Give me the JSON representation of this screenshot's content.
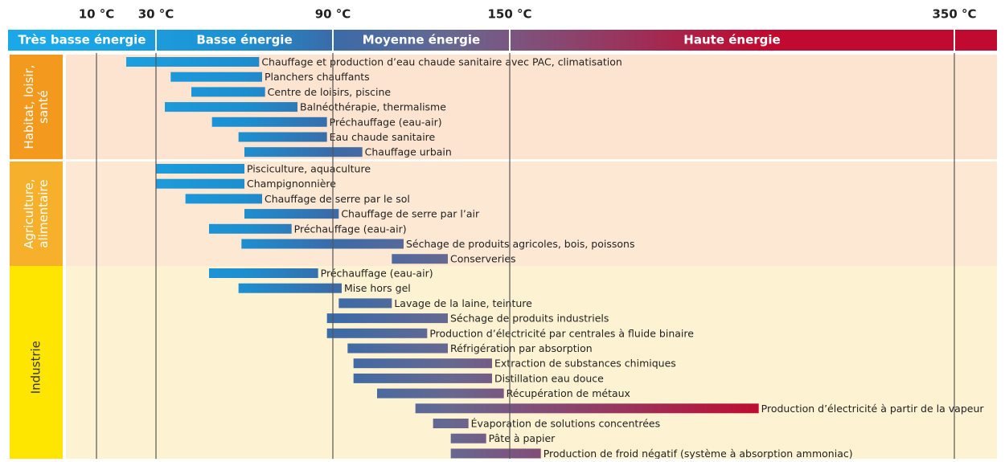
{
  "chart_data": {
    "type": "range-bar",
    "xlim": [
      0,
      370
    ],
    "xticks": [
      {
        "value": 10,
        "label": "10 °C"
      },
      {
        "value": 30,
        "label": "30 °C"
      },
      {
        "value": 90,
        "label": "90 °C"
      },
      {
        "value": 150,
        "label": "150 °C"
      },
      {
        "value": 350,
        "label": "350 °C"
      }
    ],
    "grid": true,
    "bands": [
      "Très basse énergie",
      "Basse énergie",
      "Moyenne énergie",
      "Haute énergie"
    ],
    "series": [
      {
        "name": "Habitat, loisir, santé",
        "color": "#f39a1e",
        "background": "#fce4d0",
        "tasks": [
          {
            "name": "Chauffage et production d’eau chaude sanitaire avec PAC, climatisation",
            "start": 20,
            "end": 65
          },
          {
            "name": "Planchers chauffants",
            "start": 35,
            "end": 66
          },
          {
            "name": "Centre de loisirs, piscine",
            "start": 42,
            "end": 67
          },
          {
            "name": "Balnéothérapie, thermalisme",
            "start": 33,
            "end": 78
          },
          {
            "name": "Préchauffage (eau-air)",
            "start": 49,
            "end": 88
          },
          {
            "name": "Eau chaude sanitaire",
            "start": 58,
            "end": 88
          },
          {
            "name": "Chauffage urbain",
            "start": 60,
            "end": 100
          }
        ]
      },
      {
        "name": "Agriculture, alimentaire",
        "color": "#f6b02c",
        "background": "#fce8d3",
        "tasks": [
          {
            "name": "Pisciculture, aquaculture",
            "start": 30,
            "end": 60
          },
          {
            "name": "Champignonnière",
            "start": 30,
            "end": 60
          },
          {
            "name": "Chauffage de serre par le sol",
            "start": 40,
            "end": 66
          },
          {
            "name": "Chauffage de serre par l’air",
            "start": 60,
            "end": 92
          },
          {
            "name": "Préchauffage (eau-air)",
            "start": 48,
            "end": 76
          },
          {
            "name": "Séchage de produits agricoles, bois, poissons",
            "start": 59,
            "end": 114
          },
          {
            "name": "Conserveries",
            "start": 110,
            "end": 129
          }
        ]
      },
      {
        "name": "Industrie",
        "color": "#ffe600",
        "background": "#fdf3d2",
        "tasks": [
          {
            "name": "Préchauffage (eau-air)",
            "start": 48,
            "end": 85
          },
          {
            "name": "Mise hors gel",
            "start": 58,
            "end": 93
          },
          {
            "name": "Lavage de la laine, teinture",
            "start": 92,
            "end": 110
          },
          {
            "name": "Séchage de produits industriels",
            "start": 88,
            "end": 129
          },
          {
            "name": "Production d’électricité par centrales à fluide binaire",
            "start": 88,
            "end": 122
          },
          {
            "name": "Réfrigération par absorption",
            "start": 95,
            "end": 129
          },
          {
            "name": "Extraction de substances chimiques",
            "start": 97,
            "end": 144
          },
          {
            "name": "Distillation eau douce",
            "start": 97,
            "end": 144
          },
          {
            "name": "Récupération de métaux",
            "start": 105,
            "end": 148
          },
          {
            "name": "Production d’électricité à partir de la vapeur",
            "start": 118,
            "end": 262
          },
          {
            "name": "Évaporation de solutions concentrées",
            "start": 124,
            "end": 136
          },
          {
            "name": "Pâte à papier",
            "start": 130,
            "end": 142
          },
          {
            "name": "Production de froid négatif (système à absorption ammoniac)",
            "start": 130,
            "end": 164
          }
        ]
      }
    ]
  }
}
